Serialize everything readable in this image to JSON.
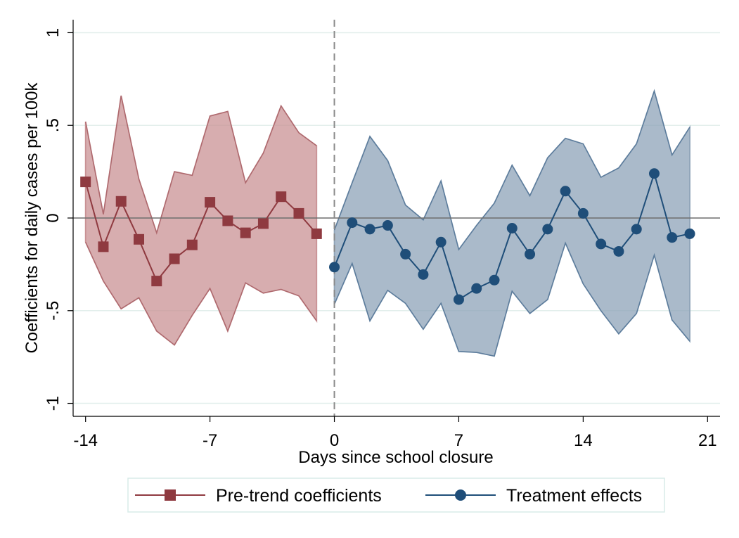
{
  "chart_data": {
    "type": "line",
    "xlabel": "Days since school closure",
    "ylabel": "Coefficients for daily cases per 100k",
    "xlim": [
      -14.7,
      21.7
    ],
    "ylim": [
      -1.07,
      1.07
    ],
    "xticks": [
      -14,
      -7,
      0,
      7,
      14,
      21
    ],
    "xtick_labels": [
      "-14",
      "-7",
      "0",
      "7",
      "14",
      "21"
    ],
    "yticks": [
      1,
      0.5,
      0,
      -0.5,
      -1
    ],
    "ytick_labels": [
      "1",
      ".5",
      "0",
      "-.5",
      "-1"
    ],
    "grid": true,
    "reference_lines": {
      "y": 0,
      "x": 0
    },
    "legend": "bottom",
    "series": [
      {
        "name": "Pre-trend coefficients",
        "color": "#8f3a40",
        "band_color": "#c99194",
        "marker": "square",
        "x": [
          -14,
          -13,
          -12,
          -11,
          -10,
          -9,
          -8,
          -7,
          -6,
          -5,
          -4,
          -3,
          -2,
          -1
        ],
        "values": [
          0.195,
          -0.155,
          0.09,
          -0.115,
          -0.34,
          -0.22,
          -0.145,
          0.085,
          -0.015,
          -0.08,
          -0.03,
          0.115,
          0.025,
          -0.085
        ],
        "ci_upper": [
          0.52,
          0.02,
          0.66,
          0.21,
          -0.08,
          0.25,
          0.23,
          0.55,
          0.575,
          0.19,
          0.35,
          0.605,
          0.46,
          0.39
        ],
        "ci_lower": [
          -0.13,
          -0.34,
          -0.49,
          -0.43,
          -0.61,
          -0.685,
          -0.525,
          -0.38,
          -0.61,
          -0.35,
          -0.405,
          -0.385,
          -0.42,
          -0.555
        ]
      },
      {
        "name": "Treatment effects",
        "color": "#1f4e79",
        "band_color": "#8ea3b8",
        "marker": "circle",
        "x": [
          0,
          1,
          2,
          3,
          4,
          5,
          6,
          7,
          8,
          9,
          10,
          11,
          12,
          13,
          14,
          15,
          16,
          17,
          18,
          19,
          20
        ],
        "values": [
          -0.265,
          -0.025,
          -0.06,
          -0.04,
          -0.195,
          -0.305,
          -0.13,
          -0.44,
          -0.38,
          -0.335,
          -0.055,
          -0.195,
          -0.06,
          0.145,
          0.025,
          -0.14,
          -0.18,
          -0.06,
          0.24,
          -0.105,
          -0.085
        ],
        "ci_upper": [
          -0.065,
          0.19,
          0.44,
          0.31,
          0.07,
          -0.01,
          0.2,
          -0.17,
          -0.04,
          0.08,
          0.285,
          0.12,
          0.325,
          0.43,
          0.4,
          0.22,
          0.27,
          0.4,
          0.685,
          0.34,
          0.49
        ],
        "ci_lower": [
          -0.465,
          -0.245,
          -0.555,
          -0.39,
          -0.46,
          -0.6,
          -0.46,
          -0.72,
          -0.725,
          -0.745,
          -0.395,
          -0.515,
          -0.44,
          -0.135,
          -0.355,
          -0.5,
          -0.625,
          -0.515,
          -0.2,
          -0.55,
          -0.665
        ]
      }
    ]
  }
}
